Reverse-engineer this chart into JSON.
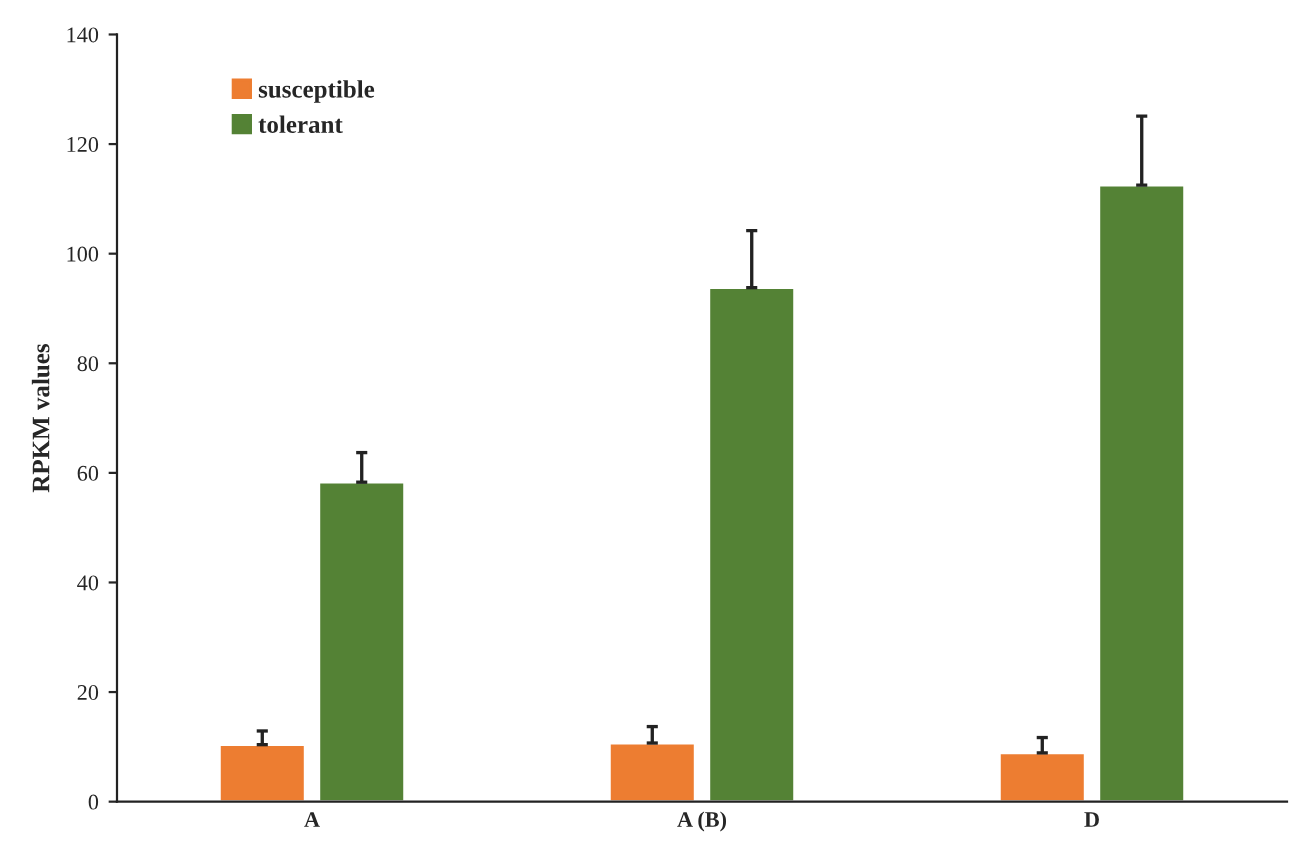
{
  "chart_data": {
    "type": "bar",
    "ylabel": "RPKM values",
    "categories": [
      "A",
      "A (B)",
      "D"
    ],
    "series": [
      {
        "name": "susceptible",
        "color": "#ed7d31",
        "values": [
          10.4,
          10.7,
          8.9
        ],
        "errors": [
          [
            10.4,
            12.9
          ],
          [
            10.7,
            13.7
          ],
          [
            8.9,
            11.7
          ]
        ]
      },
      {
        "name": "tolerant",
        "color": "#548235",
        "values": [
          58.3,
          93.8,
          112.5
        ],
        "errors": [
          [
            58.3,
            63.7
          ],
          [
            93.8,
            104.2
          ],
          [
            112.5,
            125.1
          ]
        ]
      }
    ],
    "ylim": [
      0,
      140
    ],
    "yticks": [
      0,
      20,
      40,
      60,
      80,
      100,
      120,
      140
    ],
    "grid": false,
    "legend": "top left"
  }
}
